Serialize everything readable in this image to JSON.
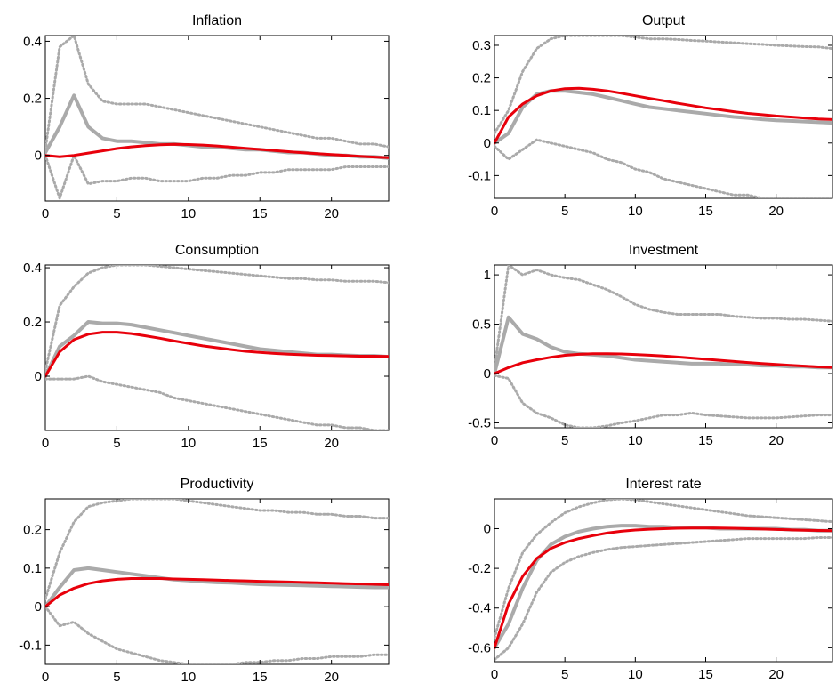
{
  "colors": {
    "model": "#e8000b",
    "var_median": "#aaaaaa",
    "var_band": "#aaaaaa",
    "axes": "#000000"
  },
  "chart_data": [
    {
      "type": "line",
      "title": "Inflation",
      "xlim": [
        0,
        24
      ],
      "ylim": [
        -0.16,
        0.42
      ],
      "xticks": [
        0,
        5,
        10,
        15,
        20
      ],
      "xtick_labels": [
        "0",
        "5",
        "10",
        "15",
        "20"
      ],
      "yticks": [
        0,
        0.2,
        0.4
      ],
      "ytick_labels": [
        "0",
        "0.2",
        "0.4"
      ],
      "grid": false,
      "x": [
        0,
        1,
        2,
        3,
        4,
        5,
        6,
        7,
        8,
        9,
        10,
        11,
        12,
        13,
        14,
        15,
        16,
        17,
        18,
        19,
        20,
        21,
        22,
        23,
        24
      ],
      "series": [
        {
          "role": "upper",
          "values": [
            0.02,
            0.38,
            0.42,
            0.25,
            0.19,
            0.18,
            0.18,
            0.18,
            0.17,
            0.16,
            0.15,
            0.14,
            0.13,
            0.12,
            0.11,
            0.1,
            0.09,
            0.08,
            0.07,
            0.06,
            0.06,
            0.05,
            0.04,
            0.04,
            0.03
          ]
        },
        {
          "role": "lower",
          "values": [
            0.0,
            -0.15,
            0.0,
            -0.1,
            -0.09,
            -0.09,
            -0.08,
            -0.08,
            -0.09,
            -0.09,
            -0.09,
            -0.08,
            -0.08,
            -0.07,
            -0.07,
            -0.06,
            -0.06,
            -0.05,
            -0.05,
            -0.05,
            -0.05,
            -0.04,
            -0.04,
            -0.04,
            -0.04
          ]
        },
        {
          "role": "var",
          "values": [
            0.01,
            0.1,
            0.21,
            0.1,
            0.06,
            0.05,
            0.05,
            0.045,
            0.04,
            0.04,
            0.035,
            0.03,
            0.03,
            0.025,
            0.02,
            0.02,
            0.015,
            0.01,
            0.01,
            0.005,
            0.0,
            0.0,
            -0.005,
            -0.005,
            -0.01
          ]
        },
        {
          "role": "model",
          "values": [
            0.0,
            -0.005,
            0.0,
            0.008,
            0.016,
            0.024,
            0.03,
            0.034,
            0.037,
            0.039,
            0.038,
            0.036,
            0.033,
            0.029,
            0.025,
            0.021,
            0.017,
            0.013,
            0.009,
            0.006,
            0.003,
            0.0,
            -0.003,
            -0.006,
            -0.008
          ]
        }
      ]
    },
    {
      "type": "line",
      "title": "Output",
      "xlim": [
        0,
        24
      ],
      "ylim": [
        -0.17,
        0.33
      ],
      "xticks": [
        0,
        5,
        10,
        15,
        20
      ],
      "xtick_labels": [
        "0",
        "5",
        "10",
        "15",
        "20"
      ],
      "yticks": [
        -0.1,
        0,
        0.1,
        0.2,
        0.3
      ],
      "ytick_labels": [
        "-0.1",
        "0",
        "0.1",
        "0.2",
        "0.3"
      ],
      "grid": false,
      "x": [
        0,
        1,
        2,
        3,
        4,
        5,
        6,
        7,
        8,
        9,
        10,
        11,
        12,
        13,
        14,
        15,
        16,
        17,
        18,
        19,
        20,
        21,
        22,
        23,
        24
      ],
      "series": [
        {
          "role": "upper",
          "values": [
            0.03,
            0.1,
            0.22,
            0.29,
            0.32,
            0.33,
            0.33,
            0.33,
            0.33,
            0.33,
            0.325,
            0.32,
            0.32,
            0.318,
            0.315,
            0.313,
            0.31,
            0.308,
            0.305,
            0.303,
            0.3,
            0.298,
            0.296,
            0.295,
            0.29
          ]
        },
        {
          "role": "lower",
          "values": [
            -0.01,
            -0.05,
            -0.02,
            0.01,
            0.0,
            -0.01,
            -0.02,
            -0.03,
            -0.05,
            -0.06,
            -0.08,
            -0.09,
            -0.11,
            -0.12,
            -0.13,
            -0.14,
            -0.15,
            -0.16,
            -0.16,
            -0.17,
            -0.17,
            -0.17,
            -0.17,
            -0.17,
            -0.17
          ]
        },
        {
          "role": "var",
          "values": [
            0.0,
            0.03,
            0.11,
            0.15,
            0.16,
            0.16,
            0.155,
            0.15,
            0.14,
            0.13,
            0.12,
            0.11,
            0.105,
            0.1,
            0.095,
            0.09,
            0.085,
            0.08,
            0.077,
            0.073,
            0.07,
            0.068,
            0.066,
            0.064,
            0.062
          ]
        },
        {
          "role": "model",
          "values": [
            0.0,
            0.08,
            0.12,
            0.145,
            0.16,
            0.167,
            0.168,
            0.165,
            0.16,
            0.153,
            0.145,
            0.137,
            0.13,
            0.122,
            0.115,
            0.108,
            0.102,
            0.096,
            0.091,
            0.087,
            0.083,
            0.08,
            0.077,
            0.074,
            0.072
          ]
        }
      ]
    },
    {
      "type": "line",
      "title": "Consumption",
      "xlim": [
        0,
        24
      ],
      "ylim": [
        -0.2,
        0.41
      ],
      "xticks": [
        0,
        5,
        10,
        15,
        20
      ],
      "xtick_labels": [
        "0",
        "5",
        "10",
        "15",
        "20"
      ],
      "yticks": [
        0,
        0.2,
        0.4
      ],
      "ytick_labels": [
        "0",
        "0.2",
        "0.4"
      ],
      "grid": false,
      "x": [
        0,
        1,
        2,
        3,
        4,
        5,
        6,
        7,
        8,
        9,
        10,
        11,
        12,
        13,
        14,
        15,
        16,
        17,
        18,
        19,
        20,
        21,
        22,
        23,
        24
      ],
      "series": [
        {
          "role": "upper",
          "values": [
            0.02,
            0.26,
            0.33,
            0.38,
            0.4,
            0.41,
            0.41,
            0.41,
            0.405,
            0.4,
            0.395,
            0.39,
            0.385,
            0.38,
            0.375,
            0.37,
            0.365,
            0.36,
            0.36,
            0.355,
            0.355,
            0.35,
            0.35,
            0.35,
            0.345
          ]
        },
        {
          "role": "lower",
          "values": [
            -0.01,
            -0.01,
            -0.01,
            0.0,
            -0.02,
            -0.03,
            -0.04,
            -0.05,
            -0.06,
            -0.08,
            -0.09,
            -0.1,
            -0.11,
            -0.12,
            -0.13,
            -0.14,
            -0.15,
            -0.16,
            -0.17,
            -0.18,
            -0.18,
            -0.19,
            -0.19,
            -0.2,
            -0.2
          ]
        },
        {
          "role": "var",
          "values": [
            0.0,
            0.11,
            0.15,
            0.2,
            0.195,
            0.195,
            0.19,
            0.18,
            0.17,
            0.16,
            0.15,
            0.14,
            0.13,
            0.12,
            0.11,
            0.1,
            0.095,
            0.09,
            0.085,
            0.08,
            0.08,
            0.077,
            0.075,
            0.075,
            0.072
          ]
        },
        {
          "role": "model",
          "values": [
            0.0,
            0.09,
            0.135,
            0.155,
            0.162,
            0.162,
            0.157,
            0.149,
            0.14,
            0.13,
            0.121,
            0.112,
            0.105,
            0.098,
            0.092,
            0.088,
            0.084,
            0.081,
            0.079,
            0.077,
            0.076,
            0.075,
            0.074,
            0.074,
            0.073
          ]
        }
      ]
    },
    {
      "type": "line",
      "title": "Investment",
      "xlim": [
        0,
        24
      ],
      "ylim": [
        -0.55,
        1.1
      ],
      "xticks": [
        0,
        5,
        10,
        15,
        20
      ],
      "xtick_labels": [
        "0",
        "5",
        "10",
        "15",
        "20"
      ],
      "yticks": [
        -0.5,
        0,
        0.5,
        1
      ],
      "ytick_labels": [
        "-0.5",
        "0",
        "0.5",
        "1"
      ],
      "grid": false,
      "x": [
        0,
        1,
        2,
        3,
        4,
        5,
        6,
        7,
        8,
        9,
        10,
        11,
        12,
        13,
        14,
        15,
        16,
        17,
        18,
        19,
        20,
        21,
        22,
        23,
        24
      ],
      "series": [
        {
          "role": "upper",
          "values": [
            0.05,
            1.1,
            1.0,
            1.05,
            1.0,
            0.97,
            0.95,
            0.9,
            0.85,
            0.78,
            0.7,
            0.65,
            0.62,
            0.6,
            0.6,
            0.6,
            0.6,
            0.58,
            0.57,
            0.56,
            0.56,
            0.55,
            0.55,
            0.54,
            0.53
          ]
        },
        {
          "role": "lower",
          "values": [
            -0.02,
            -0.05,
            -0.3,
            -0.4,
            -0.45,
            -0.52,
            -0.55,
            -0.55,
            -0.53,
            -0.5,
            -0.48,
            -0.45,
            -0.42,
            -0.42,
            -0.4,
            -0.42,
            -0.43,
            -0.44,
            -0.45,
            -0.45,
            -0.45,
            -0.44,
            -0.43,
            -0.42,
            -0.42
          ]
        },
        {
          "role": "var",
          "values": [
            0.0,
            0.57,
            0.4,
            0.35,
            0.27,
            0.22,
            0.2,
            0.19,
            0.18,
            0.16,
            0.14,
            0.13,
            0.12,
            0.11,
            0.1,
            0.1,
            0.1,
            0.09,
            0.09,
            0.08,
            0.08,
            0.07,
            0.07,
            0.06,
            0.06
          ]
        },
        {
          "role": "model",
          "values": [
            0.0,
            0.06,
            0.11,
            0.14,
            0.165,
            0.185,
            0.195,
            0.2,
            0.2,
            0.198,
            0.193,
            0.186,
            0.178,
            0.168,
            0.157,
            0.145,
            0.134,
            0.123,
            0.112,
            0.102,
            0.093,
            0.084,
            0.076,
            0.068,
            0.062
          ]
        }
      ]
    },
    {
      "type": "line",
      "title": "Productivity",
      "xlim": [
        0,
        24
      ],
      "ylim": [
        -0.15,
        0.28
      ],
      "xticks": [
        0,
        5,
        10,
        15,
        20
      ],
      "xtick_labels": [
        "0",
        "5",
        "10",
        "15",
        "20"
      ],
      "yticks": [
        -0.1,
        0,
        0.1,
        0.2
      ],
      "ytick_labels": [
        "-0.1",
        "0",
        "0.1",
        "0.2"
      ],
      "grid": false,
      "x": [
        0,
        1,
        2,
        3,
        4,
        5,
        6,
        7,
        8,
        9,
        10,
        11,
        12,
        13,
        14,
        15,
        16,
        17,
        18,
        19,
        20,
        21,
        22,
        23,
        24
      ],
      "series": [
        {
          "role": "upper",
          "values": [
            0.02,
            0.14,
            0.22,
            0.26,
            0.27,
            0.275,
            0.28,
            0.28,
            0.28,
            0.28,
            0.275,
            0.27,
            0.265,
            0.26,
            0.255,
            0.25,
            0.25,
            0.245,
            0.245,
            0.24,
            0.24,
            0.235,
            0.235,
            0.23,
            0.23
          ]
        },
        {
          "role": "lower",
          "values": [
            0.0,
            -0.05,
            -0.04,
            -0.07,
            -0.09,
            -0.11,
            -0.12,
            -0.13,
            -0.14,
            -0.145,
            -0.15,
            -0.15,
            -0.15,
            -0.15,
            -0.145,
            -0.145,
            -0.14,
            -0.14,
            -0.135,
            -0.135,
            -0.13,
            -0.13,
            -0.13,
            -0.125,
            -0.125
          ]
        },
        {
          "role": "var",
          "values": [
            0.0,
            0.05,
            0.095,
            0.1,
            0.095,
            0.09,
            0.085,
            0.08,
            0.075,
            0.07,
            0.068,
            0.065,
            0.063,
            0.062,
            0.06,
            0.058,
            0.057,
            0.056,
            0.055,
            0.054,
            0.053,
            0.052,
            0.051,
            0.05,
            0.05
          ]
        },
        {
          "role": "model",
          "values": [
            0.0,
            0.03,
            0.048,
            0.06,
            0.067,
            0.071,
            0.073,
            0.073,
            0.073,
            0.072,
            0.071,
            0.07,
            0.069,
            0.068,
            0.067,
            0.066,
            0.065,
            0.064,
            0.063,
            0.062,
            0.061,
            0.06,
            0.059,
            0.058,
            0.057
          ]
        }
      ]
    },
    {
      "type": "line",
      "title": "Interest rate",
      "xlim": [
        0,
        24
      ],
      "ylim": [
        -0.67,
        0.15
      ],
      "xticks": [
        0,
        5,
        10,
        15,
        20
      ],
      "xtick_labels": [
        "0",
        "5",
        "10",
        "15",
        "20"
      ],
      "yticks": [
        -0.6,
        -0.4,
        -0.2,
        0
      ],
      "ytick_labels": [
        "-0.6",
        "-0.4",
        "-0.2",
        "0"
      ],
      "grid": false,
      "x": [
        0,
        1,
        2,
        3,
        4,
        5,
        6,
        7,
        8,
        9,
        10,
        11,
        12,
        13,
        14,
        15,
        16,
        17,
        18,
        19,
        20,
        21,
        22,
        23,
        24
      ],
      "series": [
        {
          "role": "upper",
          "values": [
            -0.55,
            -0.3,
            -0.12,
            -0.03,
            0.03,
            0.08,
            0.11,
            0.13,
            0.145,
            0.15,
            0.145,
            0.135,
            0.125,
            0.115,
            0.105,
            0.095,
            0.085,
            0.075,
            0.065,
            0.06,
            0.055,
            0.05,
            0.045,
            0.04,
            0.035
          ]
        },
        {
          "role": "lower",
          "values": [
            -0.66,
            -0.6,
            -0.48,
            -0.32,
            -0.22,
            -0.17,
            -0.14,
            -0.12,
            -0.105,
            -0.095,
            -0.09,
            -0.085,
            -0.08,
            -0.075,
            -0.07,
            -0.065,
            -0.06,
            -0.055,
            -0.05,
            -0.05,
            -0.05,
            -0.05,
            -0.05,
            -0.045,
            -0.045
          ]
        },
        {
          "role": "var",
          "values": [
            -0.6,
            -0.48,
            -0.3,
            -0.16,
            -0.08,
            -0.04,
            -0.015,
            0.0,
            0.01,
            0.015,
            0.015,
            0.01,
            0.01,
            0.005,
            0.005,
            0.005,
            0.0,
            0.0,
            0.0,
            0.0,
            0.0,
            -0.005,
            -0.005,
            -0.01,
            -0.01
          ]
        },
        {
          "role": "model",
          "values": [
            -0.6,
            -0.38,
            -0.24,
            -0.15,
            -0.1,
            -0.07,
            -0.05,
            -0.035,
            -0.022,
            -0.013,
            -0.007,
            -0.003,
            0.0,
            0.002,
            0.003,
            0.003,
            0.003,
            0.002,
            0.0,
            -0.002,
            -0.004,
            -0.006,
            -0.008,
            -0.009,
            -0.01
          ]
        }
      ]
    }
  ]
}
